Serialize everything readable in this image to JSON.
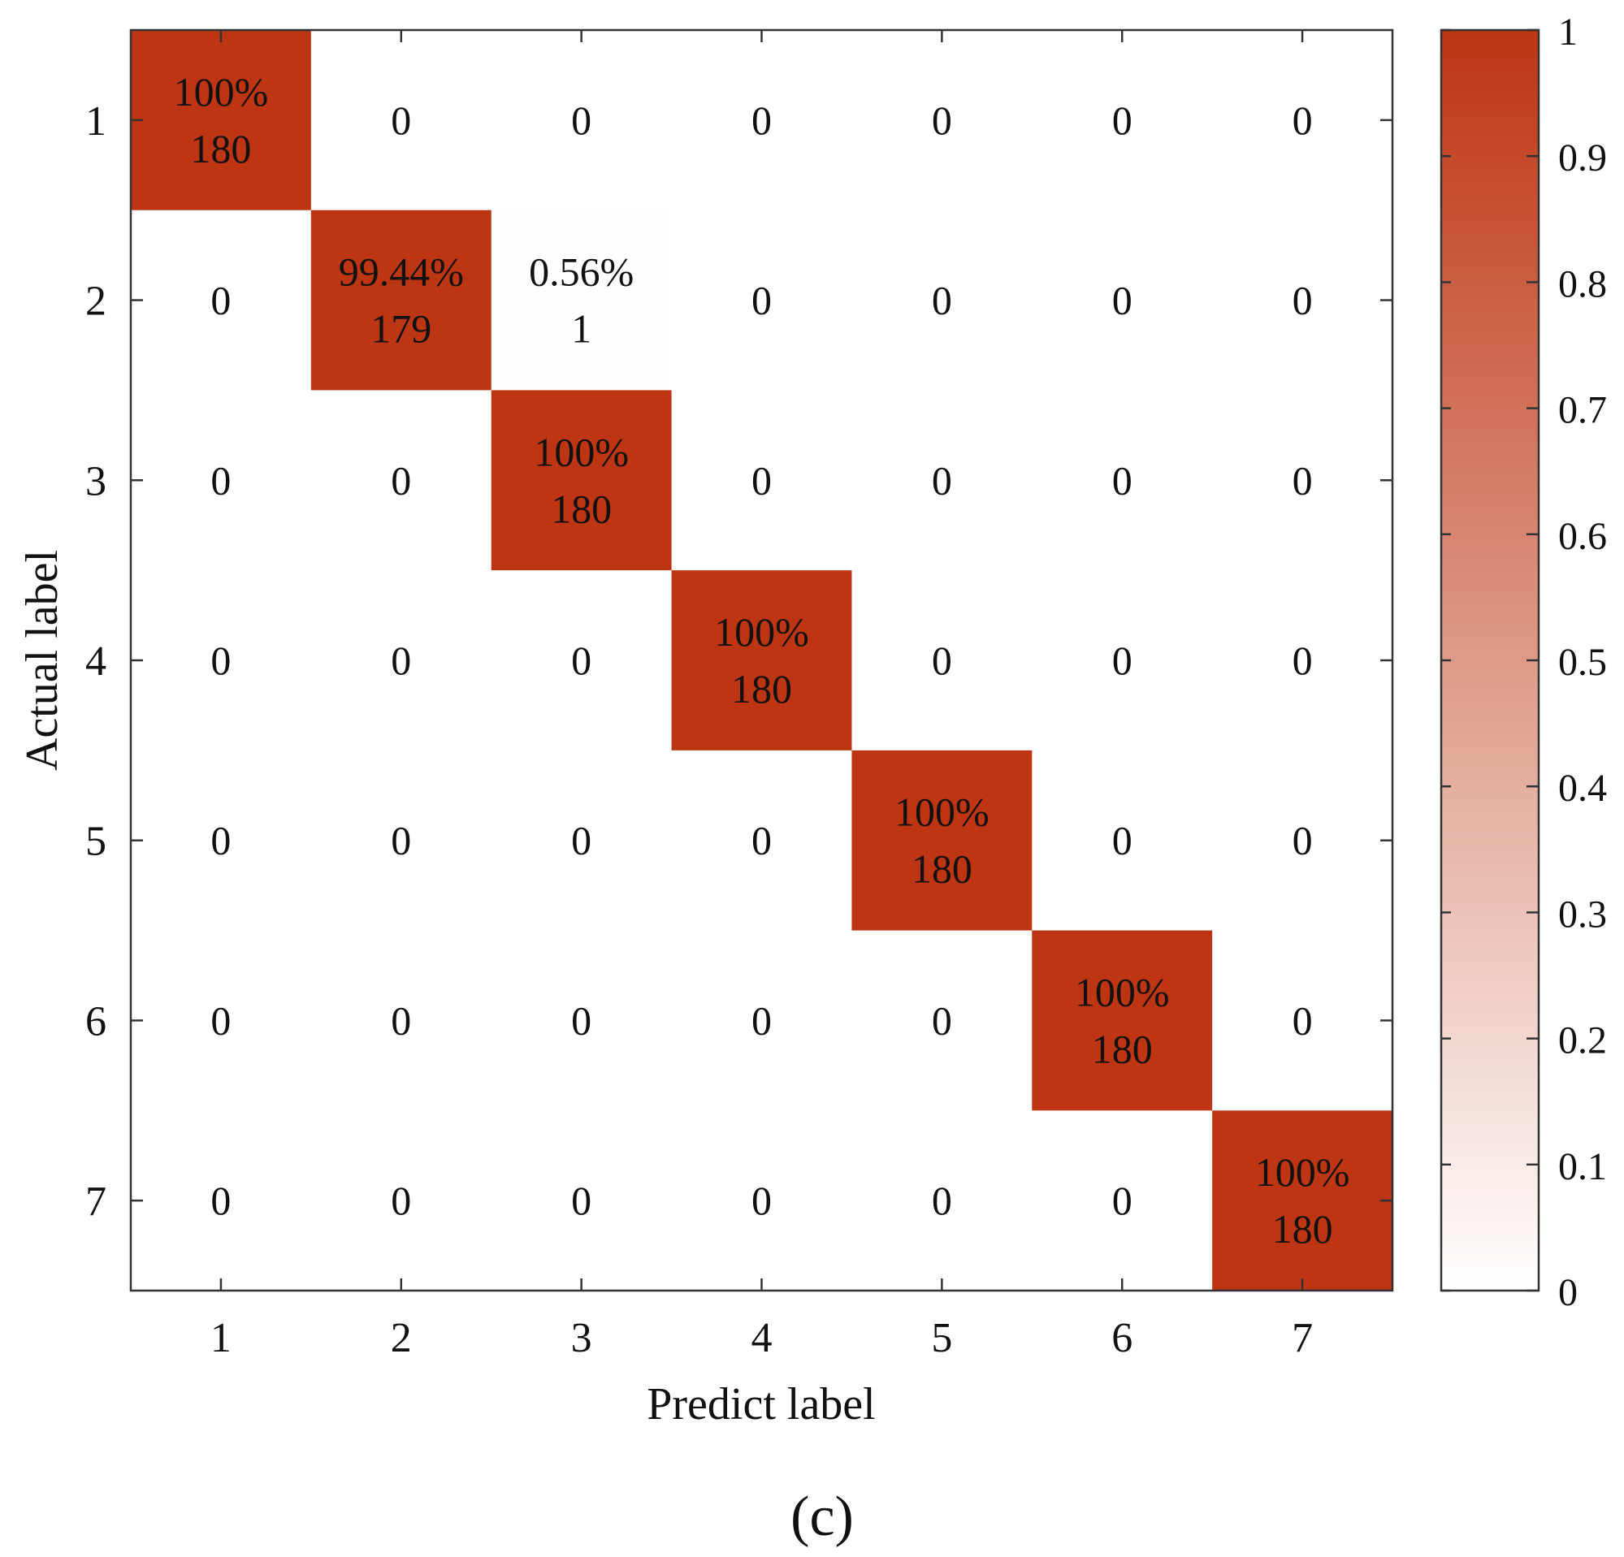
{
  "chart_data": {
    "type": "heatmap",
    "subtype": "confusion-matrix",
    "xlabel": "Predict label",
    "ylabel": "Actual label",
    "categories": [
      "1",
      "2",
      "3",
      "4",
      "5",
      "6",
      "7"
    ],
    "percent_labels": [
      [
        "100%",
        "",
        "",
        "",
        "",
        "",
        ""
      ],
      [
        "",
        "99.44%",
        "0.56%",
        "",
        "",
        "",
        ""
      ],
      [
        "",
        "",
        "100%",
        "",
        "",
        "",
        ""
      ],
      [
        "",
        "",
        "",
        "100%",
        "",
        "",
        ""
      ],
      [
        "",
        "",
        "",
        "",
        "100%",
        "",
        ""
      ],
      [
        "",
        "",
        "",
        "",
        "",
        "100%",
        ""
      ],
      [
        "",
        "",
        "",
        "",
        "",
        "",
        "100%"
      ]
    ],
    "fractions": [
      [
        1,
        0,
        0,
        0,
        0,
        0,
        0
      ],
      [
        0,
        0.9944,
        0.0056,
        0,
        0,
        0,
        0
      ],
      [
        0,
        0,
        1,
        0,
        0,
        0,
        0
      ],
      [
        0,
        0,
        0,
        1,
        0,
        0,
        0
      ],
      [
        0,
        0,
        0,
        0,
        1,
        0,
        0
      ],
      [
        0,
        0,
        0,
        0,
        0,
        1,
        0
      ],
      [
        0,
        0,
        0,
        0,
        0,
        0,
        1
      ]
    ],
    "counts": [
      [
        "180",
        "0",
        "0",
        "0",
        "0",
        "0",
        "0"
      ],
      [
        "0",
        "179",
        "1",
        "0",
        "0",
        "0",
        "0"
      ],
      [
        "0",
        "0",
        "180",
        "0",
        "0",
        "0",
        "0"
      ],
      [
        "0",
        "0",
        "0",
        "180",
        "0",
        "0",
        "0"
      ],
      [
        "0",
        "0",
        "0",
        "0",
        "180",
        "0",
        "0"
      ],
      [
        "0",
        "0",
        "0",
        "0",
        "0",
        "180",
        "0"
      ],
      [
        "0",
        "0",
        "0",
        "0",
        "0",
        "0",
        "180"
      ]
    ],
    "colorbar": {
      "range": [
        0,
        1
      ],
      "ticks": [
        0,
        0.1,
        0.2,
        0.3,
        0.4,
        0.5,
        0.6,
        0.7,
        0.8,
        0.9,
        1
      ],
      "tick_labels": [
        "0",
        "0.1",
        "0.2",
        "0.3",
        "0.4",
        "0.5",
        "0.6",
        "0.7",
        "0.8",
        "0.9",
        "1"
      ],
      "low_color": "#ffffff",
      "high_color": "#bd3512"
    }
  },
  "caption": "(c)"
}
